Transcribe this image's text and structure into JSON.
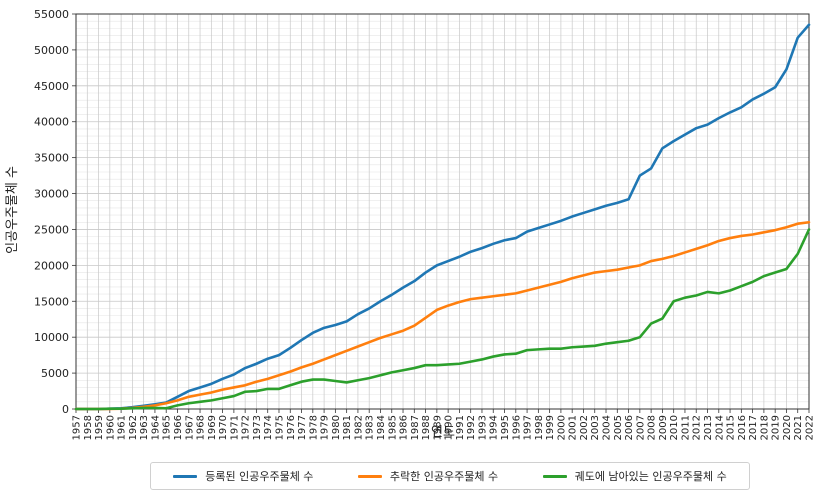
{
  "chart_data": {
    "type": "line",
    "xlabel": "연도",
    "ylabel": "인공우주물체 수",
    "xlim": [
      1957,
      2022
    ],
    "ylim": [
      0,
      55000
    ],
    "yticks": [
      "0",
      "5000",
      "10000",
      "15000",
      "20000",
      "25000",
      "30000",
      "35000",
      "40000",
      "45000",
      "50000",
      "55000"
    ],
    "yticks_values": [
      0,
      5000,
      10000,
      15000,
      20000,
      25000,
      30000,
      35000,
      40000,
      45000,
      50000,
      55000
    ],
    "grid": true,
    "legend_position": "bottom",
    "x": [
      1957,
      1958,
      1959,
      1960,
      1961,
      1962,
      1963,
      1964,
      1965,
      1966,
      1967,
      1968,
      1969,
      1970,
      1971,
      1972,
      1973,
      1974,
      1975,
      1976,
      1977,
      1978,
      1979,
      1980,
      1981,
      1982,
      1983,
      1984,
      1985,
      1986,
      1987,
      1988,
      1989,
      1990,
      1991,
      1992,
      1993,
      1994,
      1995,
      1996,
      1997,
      1998,
      1999,
      2000,
      2001,
      2002,
      2003,
      2004,
      2005,
      2006,
      2007,
      2008,
      2009,
      2010,
      2011,
      2012,
      2013,
      2014,
      2015,
      2016,
      2017,
      2018,
      2019,
      2020,
      2021,
      2022
    ],
    "series": [
      {
        "name": "등록된 인공우주물체 수",
        "color": "#1f77b4",
        "values": [
          0,
          0,
          0,
          50,
          100,
          250,
          450,
          650,
          900,
          1700,
          2500,
          3000,
          3500,
          4200,
          4800,
          5700,
          6300,
          7000,
          7500,
          8500,
          9600,
          10600,
          11300,
          11700,
          12200,
          13200,
          14000,
          15000,
          15900,
          16900,
          17800,
          19000,
          20000,
          20600,
          21200,
          21900,
          22400,
          23000,
          23500,
          23800,
          24700,
          25200,
          25700,
          26200,
          26800,
          27300,
          27800,
          28300,
          28700,
          29200,
          32500,
          33500,
          36300,
          37300,
          38200,
          39100,
          39600,
          40500,
          41300,
          42000,
          43100,
          43900,
          44800,
          47300,
          51700,
          53500
        ]
      },
      {
        "name": "추락한 인공우주물체 수",
        "color": "#ff7f0e",
        "values": [
          0,
          0,
          0,
          0,
          50,
          150,
          300,
          500,
          800,
          1200,
          1700,
          2000,
          2300,
          2700,
          3000,
          3300,
          3800,
          4200,
          4700,
          5200,
          5800,
          6300,
          6900,
          7500,
          8100,
          8700,
          9300,
          9900,
          10400,
          10900,
          11600,
          12700,
          13800,
          14400,
          14900,
          15300,
          15500,
          15700,
          15900,
          16100,
          16500,
          16900,
          17300,
          17700,
          18200,
          18600,
          19000,
          19200,
          19400,
          19700,
          20000,
          20600,
          20900,
          21300,
          21800,
          22300,
          22800,
          23400,
          23800,
          24100,
          24300,
          24600,
          24900,
          25300,
          25800,
          26000
        ]
      },
      {
        "name": "궤도에 남아있는 인공우주물체 수",
        "color": "#2ca02c",
        "values": [
          0,
          0,
          0,
          50,
          50,
          100,
          150,
          150,
          100,
          500,
          800,
          1000,
          1200,
          1500,
          1800,
          2400,
          2500,
          2800,
          2800,
          3300,
          3800,
          4100,
          4100,
          3900,
          3700,
          4000,
          4300,
          4700,
          5100,
          5400,
          5700,
          6100,
          6100,
          6200,
          6300,
          6600,
          6900,
          7300,
          7600,
          7700,
          8200,
          8300,
          8400,
          8400,
          8600,
          8700,
          8800,
          9100,
          9300,
          9500,
          10000,
          11900,
          12600,
          15000,
          15500,
          15800,
          16300,
          16100,
          16500,
          17100,
          17700,
          18500,
          19000,
          19500,
          21600,
          25000
        ]
      }
    ]
  }
}
